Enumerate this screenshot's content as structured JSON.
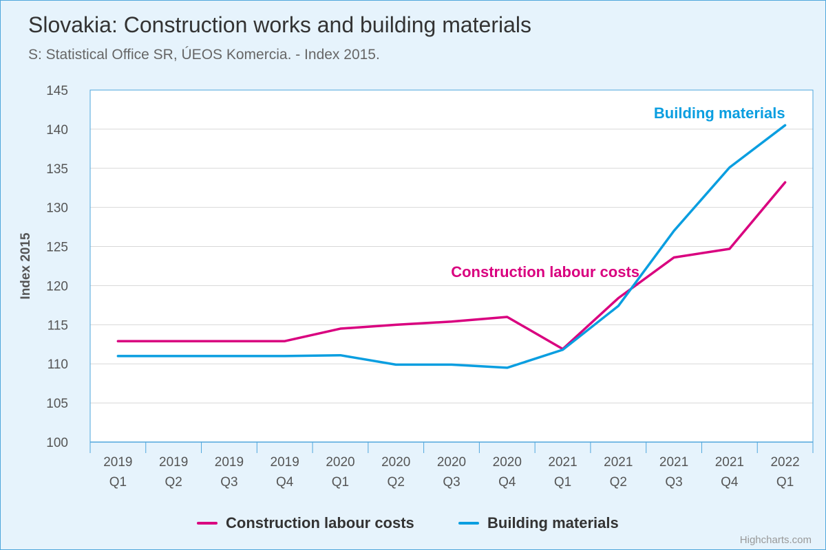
{
  "title": "Slovakia: Construction works and building materials",
  "subtitle": "S: Statistical Office SR, ÚEOS Komercia. - Index 2015.",
  "credits": "Highcharts.com",
  "chart_data": {
    "type": "line",
    "ylabel": "Index 2015",
    "ylim": [
      100,
      145
    ],
    "yticks": [
      100,
      105,
      110,
      115,
      120,
      125,
      130,
      135,
      140,
      145
    ],
    "categories": [
      [
        "2019",
        "Q1"
      ],
      [
        "2019",
        "Q2"
      ],
      [
        "2019",
        "Q3"
      ],
      [
        "2019",
        "Q4"
      ],
      [
        "2020",
        "Q1"
      ],
      [
        "2020",
        "Q2"
      ],
      [
        "2020",
        "Q3"
      ],
      [
        "2020",
        "Q4"
      ],
      [
        "2021",
        "Q1"
      ],
      [
        "2021",
        "Q2"
      ],
      [
        "2021",
        "Q3"
      ],
      [
        "2021",
        "Q4"
      ],
      [
        "2022",
        "Q1"
      ]
    ],
    "grid": true,
    "legend": "bottom-center",
    "series": [
      {
        "name": "Construction labour costs",
        "color": "#d9007f",
        "values": [
          112.9,
          112.9,
          112.9,
          112.9,
          114.5,
          115.0,
          115.4,
          116.0,
          111.9,
          118.4,
          123.6,
          124.7,
          133.2
        ]
      },
      {
        "name": "Building materials",
        "color": "#0a9ee0",
        "values": [
          111.0,
          111.0,
          111.0,
          111.0,
          111.1,
          109.9,
          109.9,
          109.5,
          111.8,
          117.4,
          127.0,
          135.1,
          140.5
        ]
      }
    ],
    "annotations": [
      {
        "text": "Building materials",
        "series": 1,
        "color": "#0a9ee0"
      },
      {
        "text": "Construction labour costs",
        "series": 0,
        "color": "#d9007f"
      }
    ]
  }
}
